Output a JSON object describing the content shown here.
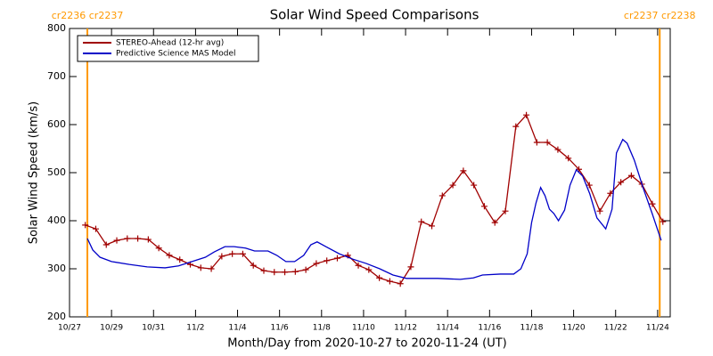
{
  "chart_data": {
    "type": "line",
    "title": "Solar Wind Speed Comparisons",
    "x_label": "Month/Day from 2020-10-27 to 2020-11-24 (UT)",
    "y_label": "Solar Wind Speed (km/s)",
    "xlim": [
      0,
      28.6
    ],
    "xticks": [
      {
        "value": 0,
        "label": "10/27"
      },
      {
        "value": 2,
        "label": "10/29"
      },
      {
        "value": 4,
        "label": "10/31"
      },
      {
        "value": 6,
        "label": "11/2"
      },
      {
        "value": 8,
        "label": "11/4"
      },
      {
        "value": 10,
        "label": "11/6"
      },
      {
        "value": 12,
        "label": "11/8"
      },
      {
        "value": 14,
        "label": "11/10"
      },
      {
        "value": 16,
        "label": "11/12"
      },
      {
        "value": 18,
        "label": "11/14"
      },
      {
        "value": 20,
        "label": "11/16"
      },
      {
        "value": 22,
        "label": "11/18"
      },
      {
        "value": 24,
        "label": "11/20"
      },
      {
        "value": 26,
        "label": "11/22"
      },
      {
        "value": 28,
        "label": "11/24"
      }
    ],
    "ylim": [
      200,
      800
    ],
    "yticks": [
      200,
      300,
      400,
      500,
      600,
      700,
      800
    ],
    "legend": "top-left",
    "vlines": [
      {
        "x": 0.85,
        "label": "cr2236 cr2237",
        "color": "#ff9900"
      },
      {
        "x": 28.1,
        "label": "cr2237 cr2238",
        "color": "#ff9900"
      }
    ],
    "series": [
      {
        "name": "STEREO-Ahead (12-hr avg)",
        "color": "#a00000",
        "marker": "+",
        "x": [
          0.75,
          1.25,
          1.75,
          2.25,
          2.75,
          3.25,
          3.75,
          4.25,
          4.75,
          5.25,
          5.75,
          6.25,
          6.75,
          7.25,
          7.75,
          8.25,
          8.75,
          9.25,
          9.75,
          10.25,
          10.75,
          11.25,
          11.75,
          12.25,
          12.75,
          13.25,
          13.75,
          14.25,
          14.75,
          15.25,
          15.75,
          16.25,
          16.75,
          17.25,
          17.75,
          18.25,
          18.75,
          19.25,
          19.75,
          20.25,
          20.75,
          21.25,
          21.75,
          22.25,
          22.75,
          23.25,
          23.75,
          24.25,
          24.75,
          25.25,
          25.75,
          26.25,
          26.75,
          27.25,
          27.75,
          28.25
        ],
        "values": [
          391,
          383,
          350,
          359,
          363,
          363,
          361,
          343,
          328,
          319,
          309,
          302,
          300,
          326,
          331,
          331,
          307,
          296,
          293,
          293,
          294,
          298,
          311,
          317,
          322,
          328,
          307,
          298,
          281,
          274,
          269,
          304,
          398,
          389,
          452,
          474,
          504,
          474,
          430,
          396,
          420,
          596,
          620,
          563,
          563,
          548,
          530,
          507,
          474,
          420,
          457,
          480,
          494,
          476,
          435,
          398
        ]
      },
      {
        "name": "Predictive Science MAS Model",
        "color": "#0000c8",
        "x": [
          0.85,
          1.11,
          1.45,
          2.0,
          2.85,
          3.7,
          4.55,
          5.19,
          5.83,
          6.47,
          6.89,
          7.4,
          7.83,
          8.38,
          8.81,
          9.45,
          9.87,
          10.3,
          10.72,
          11.15,
          11.49,
          11.79,
          12.21,
          12.85,
          13.49,
          14.13,
          14.77,
          15.4,
          16.04,
          16.68,
          17.53,
          18.6,
          19.23,
          19.66,
          20.51,
          21.15,
          21.49,
          21.79,
          22.0,
          22.21,
          22.43,
          22.64,
          22.85,
          23.06,
          23.28,
          23.57,
          23.83,
          24.13,
          24.43,
          24.77,
          25.11,
          25.53,
          25.83,
          26.04,
          26.34,
          26.55,
          26.89,
          27.32,
          27.74,
          28.17
        ],
        "values": [
          363,
          339,
          324,
          315,
          309,
          304,
          302,
          306,
          315,
          324,
          335,
          346,
          346,
          343,
          337,
          337,
          328,
          315,
          315,
          328,
          350,
          356,
          346,
          331,
          320,
          311,
          300,
          287,
          280,
          280,
          280,
          278,
          281,
          287,
          289,
          289,
          300,
          331,
          396,
          437,
          469,
          452,
          424,
          415,
          400,
          422,
          474,
          506,
          493,
          456,
          406,
          383,
          424,
          541,
          569,
          561,
          526,
          467,
          415,
          359
        ]
      }
    ]
  }
}
